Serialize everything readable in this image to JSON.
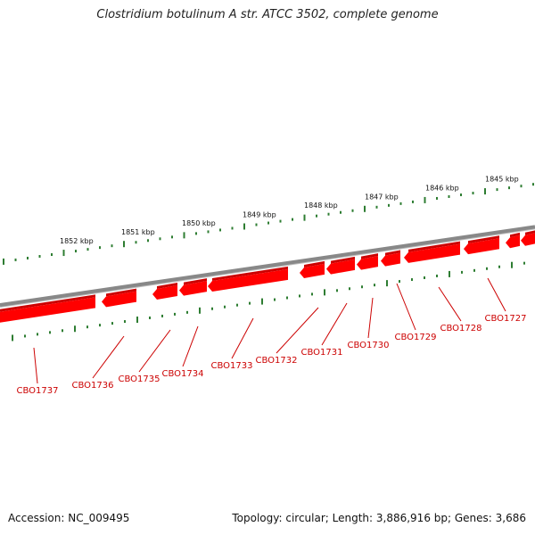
{
  "title": "Clostridium botulinum A str. ATCC 3502, complete genome",
  "footer": {
    "accession": "Accession: NC_009495",
    "stats": "Topology: circular; Length: 3,886,916 bp; Genes: 3,686"
  },
  "colors": {
    "backbone": "#888888",
    "gene_fill": "#ff0000",
    "gene_shade": "#cc0000",
    "tick": "#2e7d32",
    "label": "#cc0000"
  },
  "kbp_labels": [
    "1845 kbp",
    "1846 kbp",
    "1847 kbp",
    "1848 kbp",
    "1849 kbp",
    "1850 kbp",
    "1851 kbp",
    "1852 kbp"
  ],
  "genes": [
    "CBO1727",
    "CBO1728",
    "CBO1729",
    "CBO1730",
    "CBO1731",
    "CBO1732",
    "CBO1733",
    "CBO1734",
    "CBO1735",
    "CBO1736",
    "CBO1737"
  ]
}
